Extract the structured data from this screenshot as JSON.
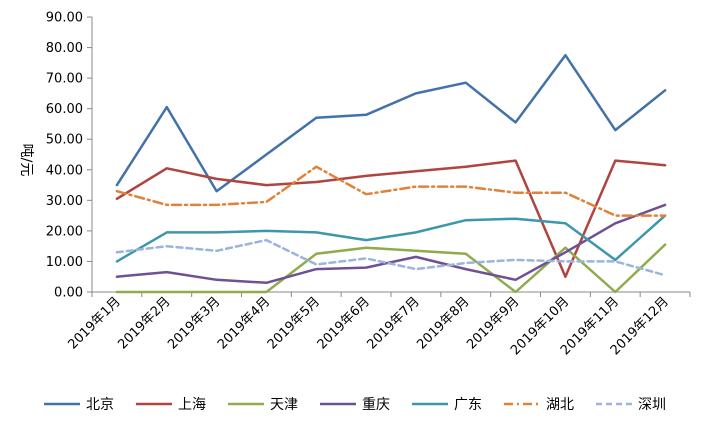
{
  "chart_data": {
    "type": "line",
    "title": "",
    "xlabel": "",
    "ylabel": "吨/元",
    "ylim": [
      0,
      90
    ],
    "ystep": 10,
    "ytick_labels": [
      "0.00",
      "10.00",
      "20.00",
      "30.00",
      "40.00",
      "50.00",
      "60.00",
      "70.00",
      "80.00",
      "90.00"
    ],
    "grid": false,
    "legend_position": "bottom",
    "categories": [
      "2019年1月",
      "2019年2月",
      "2019年3月",
      "2019年4月",
      "2019年5月",
      "2019年6月",
      "2019年7月",
      "2019年8月",
      "2019年9月",
      "2019年10月",
      "2019年11月",
      "2019年12月"
    ],
    "series": [
      {
        "name": "北京",
        "color": "#4472A8",
        "dash": "solid",
        "values": [
          35.0,
          60.5,
          33.0,
          45.0,
          57.0,
          58.0,
          65.0,
          68.5,
          55.5,
          77.5,
          53.0,
          66.0
        ]
      },
      {
        "name": "上海",
        "color": "#B04441",
        "dash": "solid",
        "values": [
          30.5,
          40.5,
          37.0,
          35.0,
          36.0,
          38.0,
          39.5,
          41.0,
          43.0,
          5.0,
          43.0,
          41.5
        ]
      },
      {
        "name": "天津",
        "color": "#8EAB4E",
        "dash": "solid",
        "values": [
          0.0,
          0.0,
          0.0,
          0.0,
          12.5,
          14.5,
          13.5,
          12.5,
          0.0,
          14.5,
          0.0,
          15.5
        ]
      },
      {
        "name": "重庆",
        "color": "#6F5193",
        "dash": "solid",
        "values": [
          5.0,
          6.5,
          4.0,
          3.0,
          7.5,
          8.0,
          11.5,
          7.5,
          4.0,
          13.0,
          22.5,
          28.5
        ]
      },
      {
        "name": "广东",
        "color": "#3D97AB",
        "dash": "solid",
        "values": [
          10.0,
          19.5,
          19.5,
          20.0,
          19.5,
          17.0,
          19.5,
          23.5,
          24.0,
          22.5,
          10.5,
          25.0
        ]
      },
      {
        "name": "湖北",
        "color": "#E0823A",
        "dash": "dashdot",
        "values": [
          33.0,
          28.5,
          28.5,
          29.5,
          41.0,
          32.0,
          34.5,
          34.5,
          32.5,
          32.5,
          25.0,
          25.0
        ]
      },
      {
        "name": "深圳",
        "color": "#9AB4DA",
        "dash": "dashed",
        "values": [
          13.0,
          15.0,
          13.5,
          17.0,
          9.0,
          11.0,
          7.5,
          9.5,
          10.5,
          10.0,
          10.0,
          5.5
        ]
      }
    ]
  }
}
